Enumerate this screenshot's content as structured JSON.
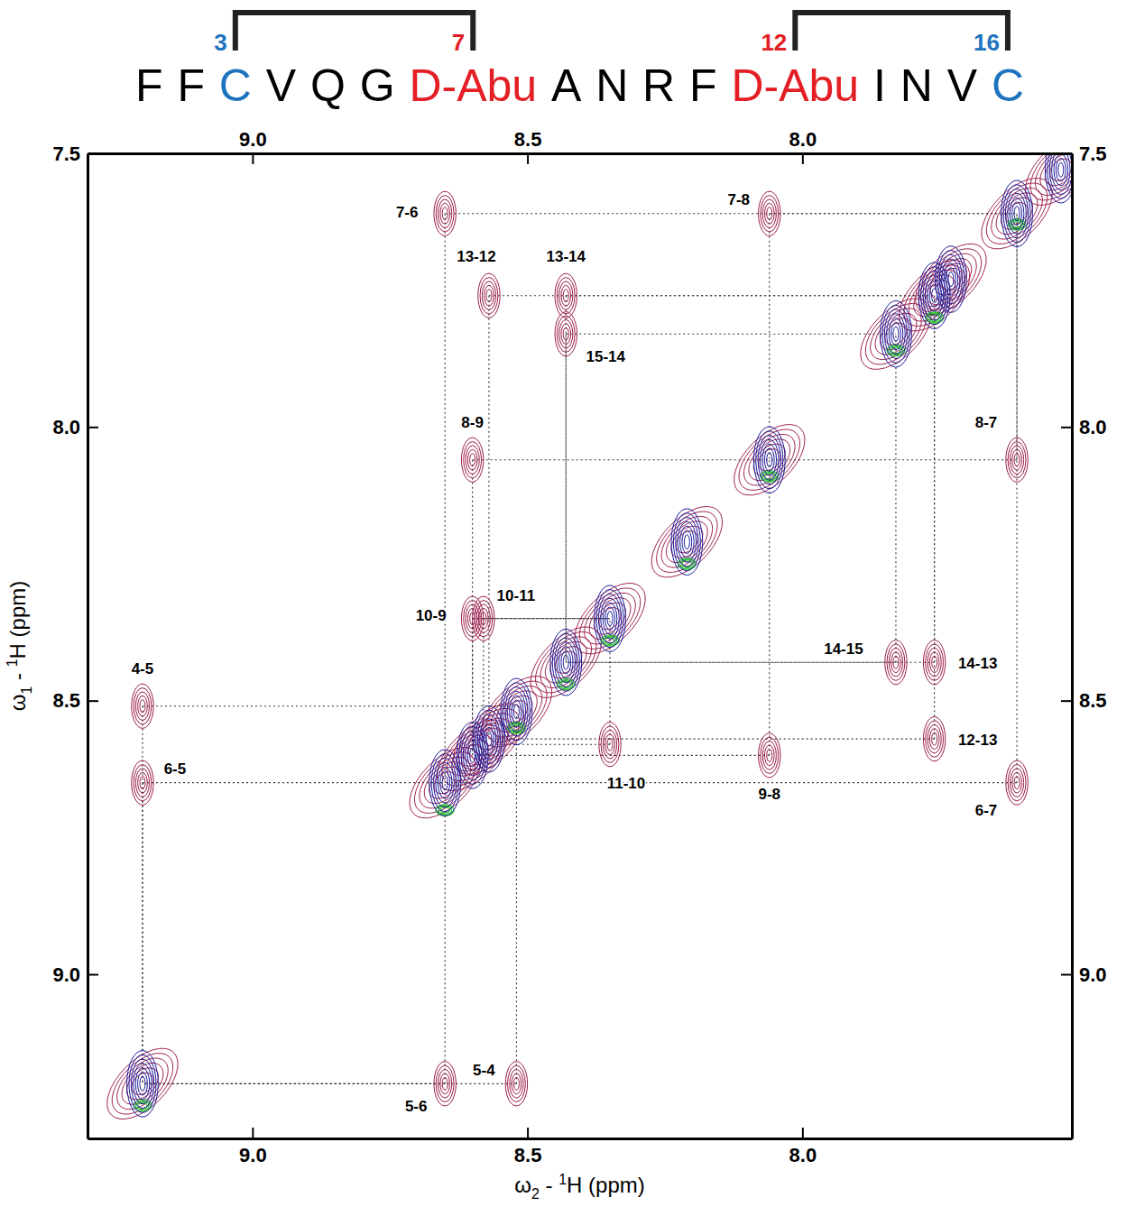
{
  "chart_data": {
    "type": "contour",
    "sequence": [
      {
        "text": "F",
        "color": "#000000"
      },
      {
        "text": "F",
        "color": "#000000"
      },
      {
        "text": "C",
        "color": "#1e73be",
        "number": 3
      },
      {
        "text": "V",
        "color": "#000000"
      },
      {
        "text": "Q",
        "color": "#000000"
      },
      {
        "text": "G",
        "color": "#000000"
      },
      {
        "text": "D-Abu",
        "color": "#e31e24",
        "number": 7
      },
      {
        "text": "A",
        "color": "#000000"
      },
      {
        "text": "N",
        "color": "#000000"
      },
      {
        "text": "R",
        "color": "#000000"
      },
      {
        "text": "F",
        "color": "#000000"
      },
      {
        "text": "D-Abu",
        "color": "#e31e24",
        "number": 12
      },
      {
        "text": "I",
        "color": "#000000"
      },
      {
        "text": "N",
        "color": "#000000"
      },
      {
        "text": "V",
        "color": "#000000"
      },
      {
        "text": "C",
        "color": "#1e73be",
        "number": 16
      }
    ],
    "bridges": [
      [
        3,
        7
      ],
      [
        12,
        16
      ]
    ],
    "x_label": [
      "ω",
      "2",
      " - ",
      "1",
      "H  (ppm)"
    ],
    "y_label": [
      "ω",
      "1",
      " - ",
      "1",
      "H  (ppm)"
    ],
    "xlim": [
      9.3,
      7.51
    ],
    "ylim": [
      7.5,
      9.3
    ],
    "xticks": [
      {
        "value": 9,
        "label": "9.0"
      },
      8.5,
      {
        "value": 8,
        "label": "8.0"
      }
    ],
    "yticks": [
      7.5,
      {
        "value": 8,
        "label": "8.0"
      },
      8.5,
      {
        "value": 9,
        "label": "9.0"
      }
    ],
    "series": [
      {
        "type": "cross_peaks",
        "color": "#9b1b4b",
        "labels": [
          "7-6",
          "7-8",
          "13-12",
          "13-14",
          "15-14",
          "8-9",
          "8-7",
          "10-9",
          "10-11",
          "14-15",
          "14-13",
          "4-5",
          "12-13",
          "11-10",
          "9-8",
          "6-5",
          "6-7",
          "5-4",
          "5-6"
        ],
        "x": [
          8.65,
          8.06,
          8.57,
          8.43,
          8.43,
          8.6,
          7.61,
          8.6,
          8.58,
          7.83,
          7.76,
          9.2,
          7.76,
          8.35,
          8.06,
          9.2,
          7.61,
          8.52,
          8.65
        ],
        "y": [
          7.61,
          7.61,
          7.76,
          7.76,
          7.83,
          8.06,
          8.06,
          8.35,
          8.35,
          8.43,
          8.43,
          8.51,
          8.57,
          8.58,
          8.6,
          8.65,
          8.65,
          9.2,
          9.2
        ]
      },
      {
        "type": "diagonal",
        "color": "#1c1c9c",
        "x": [
          9.2,
          8.65,
          8.6,
          8.57,
          8.52,
          8.43,
          8.35,
          8.21,
          8.06,
          7.83,
          7.76,
          7.73,
          7.61,
          7.53
        ],
        "y": [
          9.2,
          8.65,
          8.6,
          8.57,
          8.52,
          8.43,
          8.35,
          8.21,
          8.06,
          7.83,
          7.76,
          7.73,
          7.61,
          7.53
        ]
      },
      {
        "type": "diagonal_negative",
        "color": "#22c72a",
        "x": [
          9.2,
          8.65,
          8.52,
          8.43,
          8.35,
          8.21,
          8.06,
          7.83,
          7.76,
          7.61
        ],
        "y": [
          9.24,
          8.7,
          8.55,
          8.47,
          8.39,
          8.25,
          8.09,
          7.86,
          7.8,
          7.63
        ]
      }
    ]
  }
}
